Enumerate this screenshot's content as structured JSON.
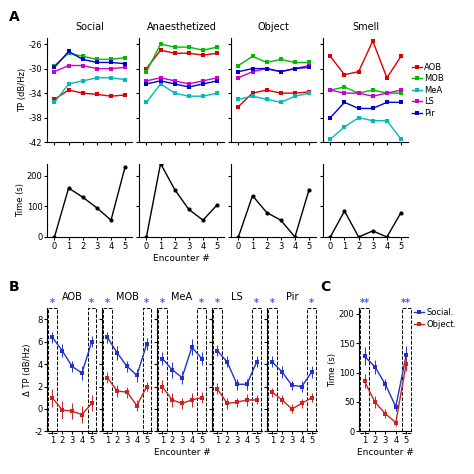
{
  "chart_data": [
    {
      "type": "line",
      "title": "Social",
      "y_label": "TP (dB/Hz)",
      "tick_labels": "y",
      "x": [
        0,
        1,
        2,
        3,
        4,
        5
      ],
      "xlim": [
        -0.5,
        5.5
      ],
      "xticks": [
        0,
        1,
        2,
        3,
        4,
        5
      ],
      "ylim": [
        -42,
        -25
      ],
      "yticks": [
        -42,
        -38,
        -34,
        -30,
        -26
      ],
      "annotations": [
        {
          "text": "A"
        }
      ],
      "series": [
        {
          "name": "AOB",
          "color": "#dd0000",
          "marker": "square",
          "values": [
            -35.0,
            -33.5,
            -34.0,
            -34.2,
            -34.5,
            -34.3
          ]
        },
        {
          "name": "MOB",
          "color": "#00bb00",
          "marker": "square",
          "values": [
            -29.5,
            -27.5,
            -28.0,
            -28.5,
            -28.5,
            -28.2
          ]
        },
        {
          "name": "MeA",
          "color": "#00bbbb",
          "marker": "square",
          "values": [
            -35.5,
            -32.5,
            -32.0,
            -31.5,
            -31.5,
            -31.8
          ]
        },
        {
          "name": "LS",
          "color": "#cc00cc",
          "marker": "square",
          "values": [
            -30.5,
            -29.5,
            -29.5,
            -30.0,
            -30.0,
            -29.8
          ]
        },
        {
          "name": "Pir",
          "color": "#0000cc",
          "marker": "square",
          "values": [
            -29.8,
            -27.2,
            -28.5,
            -29.0,
            -29.0,
            -29.2
          ]
        }
      ]
    },
    {
      "type": "line",
      "title": "Anaesthetized",
      "tick_labels": false,
      "x": [
        0,
        1,
        2,
        3,
        4,
        5
      ],
      "xlim": [
        -0.5,
        5.5
      ],
      "xticks": [
        0,
        1,
        2,
        3,
        4,
        5
      ],
      "ylim": [
        -42,
        -25
      ],
      "yticks": [
        -42,
        -38,
        -34,
        -30,
        -26
      ],
      "series": [
        {
          "name": "AOB",
          "color": "#dd0000",
          "marker": "square",
          "values": [
            -30.0,
            -27.0,
            -27.5,
            -27.5,
            -27.8,
            -27.5
          ]
        },
        {
          "name": "MOB",
          "color": "#00bb00",
          "marker": "square",
          "values": [
            -30.5,
            -26.0,
            -26.5,
            -26.5,
            -27.0,
            -26.5
          ]
        },
        {
          "name": "MeA",
          "color": "#00bbbb",
          "marker": "square",
          "values": [
            -35.5,
            -32.5,
            -34.0,
            -34.5,
            -34.5,
            -34.0
          ]
        },
        {
          "name": "LS",
          "color": "#cc00cc",
          "marker": "square",
          "values": [
            -32.0,
            -31.5,
            -32.0,
            -32.5,
            -32.0,
            -31.5
          ]
        },
        {
          "name": "Pir",
          "color": "#0000cc",
          "marker": "square",
          "values": [
            -32.5,
            -32.0,
            -32.5,
            -33.0,
            -32.5,
            -32.0
          ]
        }
      ]
    },
    {
      "type": "line",
      "title": "Object",
      "tick_labels": false,
      "x": [
        0,
        1,
        2,
        3,
        4,
        5
      ],
      "xlim": [
        -0.5,
        5.5
      ],
      "xticks": [
        0,
        1,
        2,
        3,
        4,
        5
      ],
      "ylim": [
        -42,
        -25
      ],
      "yticks": [
        -42,
        -38,
        -34,
        -30,
        -26
      ],
      "series": [
        {
          "name": "AOB",
          "color": "#dd0000",
          "marker": "square",
          "values": [
            -36.2,
            -34.0,
            -33.5,
            -34.0,
            -34.0,
            -33.8
          ]
        },
        {
          "name": "MOB",
          "color": "#00bb00",
          "marker": "square",
          "values": [
            -29.5,
            -28.0,
            -29.0,
            -28.5,
            -29.0,
            -29.0
          ]
        },
        {
          "name": "MeA",
          "color": "#00bbbb",
          "marker": "square",
          "values": [
            -35.0,
            -34.5,
            -35.0,
            -35.5,
            -34.5,
            -34.0
          ]
        },
        {
          "name": "LS",
          "color": "#cc00cc",
          "marker": "square",
          "values": [
            -31.5,
            -30.5,
            -30.0,
            -30.5,
            -30.0,
            -29.5
          ]
        },
        {
          "name": "Pir",
          "color": "#0000cc",
          "marker": "square",
          "values": [
            -30.5,
            -30.0,
            -30.0,
            -30.5,
            -30.0,
            -29.8
          ]
        }
      ]
    },
    {
      "type": "line",
      "title": "Smell",
      "tick_labels": false,
      "legend": "center left",
      "x": [
        0,
        1,
        2,
        3,
        4,
        5
      ],
      "xlim": [
        -0.5,
        5.5
      ],
      "xticks": [
        0,
        1,
        2,
        3,
        4,
        5
      ],
      "ylim": [
        -42,
        -25
      ],
      "yticks": [
        -42,
        -38,
        -34,
        -30,
        -26
      ],
      "series": [
        {
          "name": "AOB",
          "color": "#dd0000",
          "marker": "square",
          "values": [
            -28.0,
            -31.0,
            -30.5,
            -25.5,
            -31.5,
            -28.0
          ]
        },
        {
          "name": "MOB",
          "color": "#00bb00",
          "marker": "square",
          "values": [
            -33.5,
            -33.0,
            -34.0,
            -33.5,
            -34.0,
            -34.0
          ]
        },
        {
          "name": "MeA",
          "color": "#00bbbb",
          "marker": "square",
          "values": [
            -41.5,
            -39.5,
            -38.0,
            -38.5,
            -38.5,
            -41.5
          ]
        },
        {
          "name": "LS",
          "color": "#cc00cc",
          "marker": "square",
          "values": [
            -33.5,
            -34.0,
            -34.0,
            -34.5,
            -34.0,
            -33.5
          ]
        },
        {
          "name": "Pir",
          "color": "#0000cc",
          "marker": "square",
          "values": [
            -38.0,
            -35.5,
            -36.5,
            -36.5,
            -35.5,
            -35.5
          ]
        }
      ]
    },
    {
      "type": "line",
      "y_label": "Time (s)",
      "x": [
        0,
        1,
        2,
        3,
        4,
        5
      ],
      "xlim": [
        -0.5,
        5.5
      ],
      "xticks": [
        0,
        1,
        2,
        3,
        4,
        5
      ],
      "ylim": [
        0,
        240
      ],
      "yticks": [
        0,
        100,
        200
      ],
      "series": [
        {
          "color": "#000000",
          "marker": "circle",
          "values": [
            0,
            160,
            130,
            95,
            55,
            230
          ]
        }
      ]
    },
    {
      "type": "line",
      "x_label": "Encounter #",
      "tick_labels": "x",
      "x": [
        0,
        1,
        2,
        3,
        4,
        5
      ],
      "xlim": [
        -0.5,
        5.5
      ],
      "xticks": [
        0,
        1,
        2,
        3,
        4,
        5
      ],
      "ylim": [
        0,
        240
      ],
      "yticks": [
        0,
        100,
        200
      ],
      "series": [
        {
          "color": "#000000",
          "marker": "circle",
          "values": [
            0,
            240,
            155,
            90,
            55,
            105
          ]
        }
      ]
    },
    {
      "type": "line",
      "tick_labels": "x",
      "x": [
        0,
        1,
        2,
        3,
        4,
        5
      ],
      "xlim": [
        -0.5,
        5.5
      ],
      "xticks": [
        0,
        1,
        2,
        3,
        4,
        5
      ],
      "ylim": [
        0,
        240
      ],
      "yticks": [
        0,
        100,
        200
      ],
      "series": [
        {
          "color": "#000000",
          "marker": "circle",
          "values": [
            0,
            135,
            80,
            55,
            0,
            155
          ]
        }
      ]
    },
    {
      "type": "line",
      "tick_labels": "x",
      "x": [
        0,
        1,
        2,
        3,
        4,
        5
      ],
      "xlim": [
        -0.5,
        5.5
      ],
      "xticks": [
        0,
        1,
        2,
        3,
        4,
        5
      ],
      "ylim": [
        0,
        240
      ],
      "yticks": [
        0,
        100,
        200
      ],
      "series": [
        {
          "color": "#000000",
          "marker": "circle",
          "values": [
            0,
            85,
            0,
            20,
            0,
            80
          ]
        }
      ]
    },
    {
      "type": "line",
      "title": "AOB",
      "y_label": "Δ TP (dB/Hz)",
      "x": [
        1,
        2,
        3,
        4,
        5
      ],
      "xlim": [
        0.5,
        5.5
      ],
      "xticks": [
        1,
        2,
        3,
        4,
        5
      ],
      "ylim": [
        -2,
        9
      ],
      "yticks": [
        -2,
        0,
        2,
        4,
        6,
        8
      ],
      "annotations": [
        {
          "text": "B"
        },
        {
          "text": "*",
          "x": 1,
          "color": "#4455ff"
        },
        {
          "text": "*",
          "x": 5,
          "color": "#4455ff"
        }
      ],
      "series": [
        {
          "name": "Social.",
          "color": "#2233cc",
          "marker": "square",
          "values": [
            6.4,
            5.2,
            3.8,
            3.2,
            6.0
          ],
          "errors": [
            0.5,
            0.6,
            0.5,
            0.6,
            0.5
          ]
        },
        {
          "name": "Object.",
          "color": "#cc2222",
          "marker": "square",
          "values": [
            1.0,
            -0.1,
            -0.2,
            -0.5,
            0.5
          ],
          "errors": [
            0.8,
            0.8,
            0.7,
            0.8,
            0.7
          ]
        }
      ]
    },
    {
      "type": "line",
      "title": "MOB",
      "tick_labels": "x",
      "x": [
        1,
        2,
        3,
        4,
        5
      ],
      "xlim": [
        0.5,
        5.5
      ],
      "xticks": [
        1,
        2,
        3,
        4,
        5
      ],
      "ylim": [
        -2,
        9
      ],
      "yticks": [
        -2,
        0,
        2,
        4,
        6,
        8
      ],
      "annotations": [
        {
          "text": "*",
          "x": 1,
          "color": "#4455ff"
        },
        {
          "text": "*",
          "x": 5,
          "color": "#4455ff"
        }
      ],
      "series": [
        {
          "name": "Social.",
          "color": "#2233cc",
          "marker": "square",
          "values": [
            6.4,
            5.0,
            3.8,
            3.0,
            5.8
          ],
          "errors": [
            0.5,
            0.6,
            0.5,
            0.6,
            0.5
          ]
        },
        {
          "name": "Object.",
          "color": "#cc2222",
          "marker": "square",
          "values": [
            2.8,
            1.6,
            1.5,
            0.3,
            2.0
          ],
          "errors": [
            0.5,
            0.5,
            0.5,
            0.5,
            0.4
          ]
        }
      ]
    },
    {
      "type": "line",
      "title": "MeA",
      "x_label": "Encounter #",
      "tick_labels": "x",
      "x": [
        1,
        2,
        3,
        4,
        5
      ],
      "xlim": [
        0.5,
        5.5
      ],
      "xticks": [
        1,
        2,
        3,
        4,
        5
      ],
      "ylim": [
        -2,
        9
      ],
      "yticks": [
        -2,
        0,
        2,
        4,
        6,
        8
      ],
      "annotations": [
        {
          "text": "*",
          "x": 1,
          "color": "#4455ff"
        },
        {
          "text": "*",
          "x": 5,
          "color": "#4455ff"
        }
      ],
      "series": [
        {
          "name": "Social.",
          "color": "#2233cc",
          "marker": "square",
          "values": [
            4.5,
            3.5,
            2.8,
            5.5,
            4.5
          ],
          "errors": [
            0.6,
            0.7,
            0.6,
            0.7,
            0.6
          ]
        },
        {
          "name": "Object.",
          "color": "#cc2222",
          "marker": "square",
          "values": [
            2.0,
            0.8,
            0.5,
            0.8,
            1.0
          ],
          "errors": [
            0.6,
            0.6,
            0.5,
            0.6,
            0.5
          ]
        }
      ]
    },
    {
      "type": "line",
      "title": "LS",
      "tick_labels": "x",
      "x": [
        1,
        2,
        3,
        4,
        5
      ],
      "xlim": [
        0.5,
        5.5
      ],
      "xticks": [
        1,
        2,
        3,
        4,
        5
      ],
      "ylim": [
        -2,
        9
      ],
      "yticks": [
        -2,
        0,
        2,
        4,
        6,
        8
      ],
      "annotations": [
        {
          "text": "*",
          "x": 1,
          "color": "#4455ff"
        },
        {
          "text": "*",
          "x": 5,
          "color": "#4455ff"
        }
      ],
      "series": [
        {
          "name": "Social.",
          "color": "#2233cc",
          "marker": "square",
          "values": [
            5.2,
            4.2,
            2.2,
            2.2,
            4.2
          ],
          "errors": [
            0.5,
            0.5,
            0.5,
            0.5,
            0.5
          ]
        },
        {
          "name": "Object.",
          "color": "#cc2222",
          "marker": "square",
          "values": [
            1.8,
            0.5,
            0.6,
            0.8,
            0.8
          ],
          "errors": [
            0.5,
            0.5,
            0.4,
            0.5,
            0.4
          ]
        }
      ]
    },
    {
      "type": "line",
      "title": "Pir",
      "tick_labels": "x",
      "x": [
        1,
        2,
        3,
        4,
        5
      ],
      "xlim": [
        0.5,
        5.5
      ],
      "xticks": [
        1,
        2,
        3,
        4,
        5
      ],
      "ylim": [
        -2,
        9
      ],
      "yticks": [
        -2,
        0,
        2,
        4,
        6,
        8
      ],
      "annotations": [
        {
          "text": "*",
          "x": 1,
          "color": "#4455ff"
        },
        {
          "text": "*",
          "x": 5,
          "color": "#4455ff"
        }
      ],
      "series": [
        {
          "name": "Social.",
          "color": "#2233cc",
          "marker": "square",
          "values": [
            4.2,
            3.3,
            2.1,
            2.0,
            3.3
          ],
          "errors": [
            0.5,
            0.5,
            0.4,
            0.5,
            0.5
          ]
        },
        {
          "name": "Object.",
          "color": "#cc2222",
          "marker": "square",
          "values": [
            1.5,
            0.8,
            0.0,
            0.5,
            1.0
          ],
          "errors": [
            0.4,
            0.4,
            0.4,
            0.4,
            0.4
          ]
        }
      ]
    },
    {
      "type": "line",
      "y_label": "Time (s)",
      "x_label": "Encounter #",
      "legend": "upper left",
      "x": [
        1,
        2,
        3,
        4,
        5
      ],
      "xlim": [
        0.5,
        5.5
      ],
      "xticks": [
        1,
        2,
        3,
        4,
        5
      ],
      "ylim": [
        0,
        210
      ],
      "yticks": [
        0,
        50,
        100,
        150,
        200
      ],
      "annotations": [
        {
          "text": "C"
        },
        {
          "text": "**",
          "x": 1,
          "color": "#4455ff"
        },
        {
          "text": "**",
          "x": 5,
          "color": "#4455ff"
        }
      ],
      "series": [
        {
          "name": "Social.",
          "color": "#2233cc",
          "marker": "square",
          "values": [
            128,
            110,
            80,
            42,
            130
          ],
          "errors": [
            15,
            12,
            10,
            8,
            15
          ]
        },
        {
          "name": "Object.",
          "color": "#cc2222",
          "marker": "square",
          "values": [
            85,
            50,
            30,
            15,
            115
          ],
          "errors": [
            12,
            10,
            8,
            6,
            12
          ]
        }
      ]
    }
  ]
}
